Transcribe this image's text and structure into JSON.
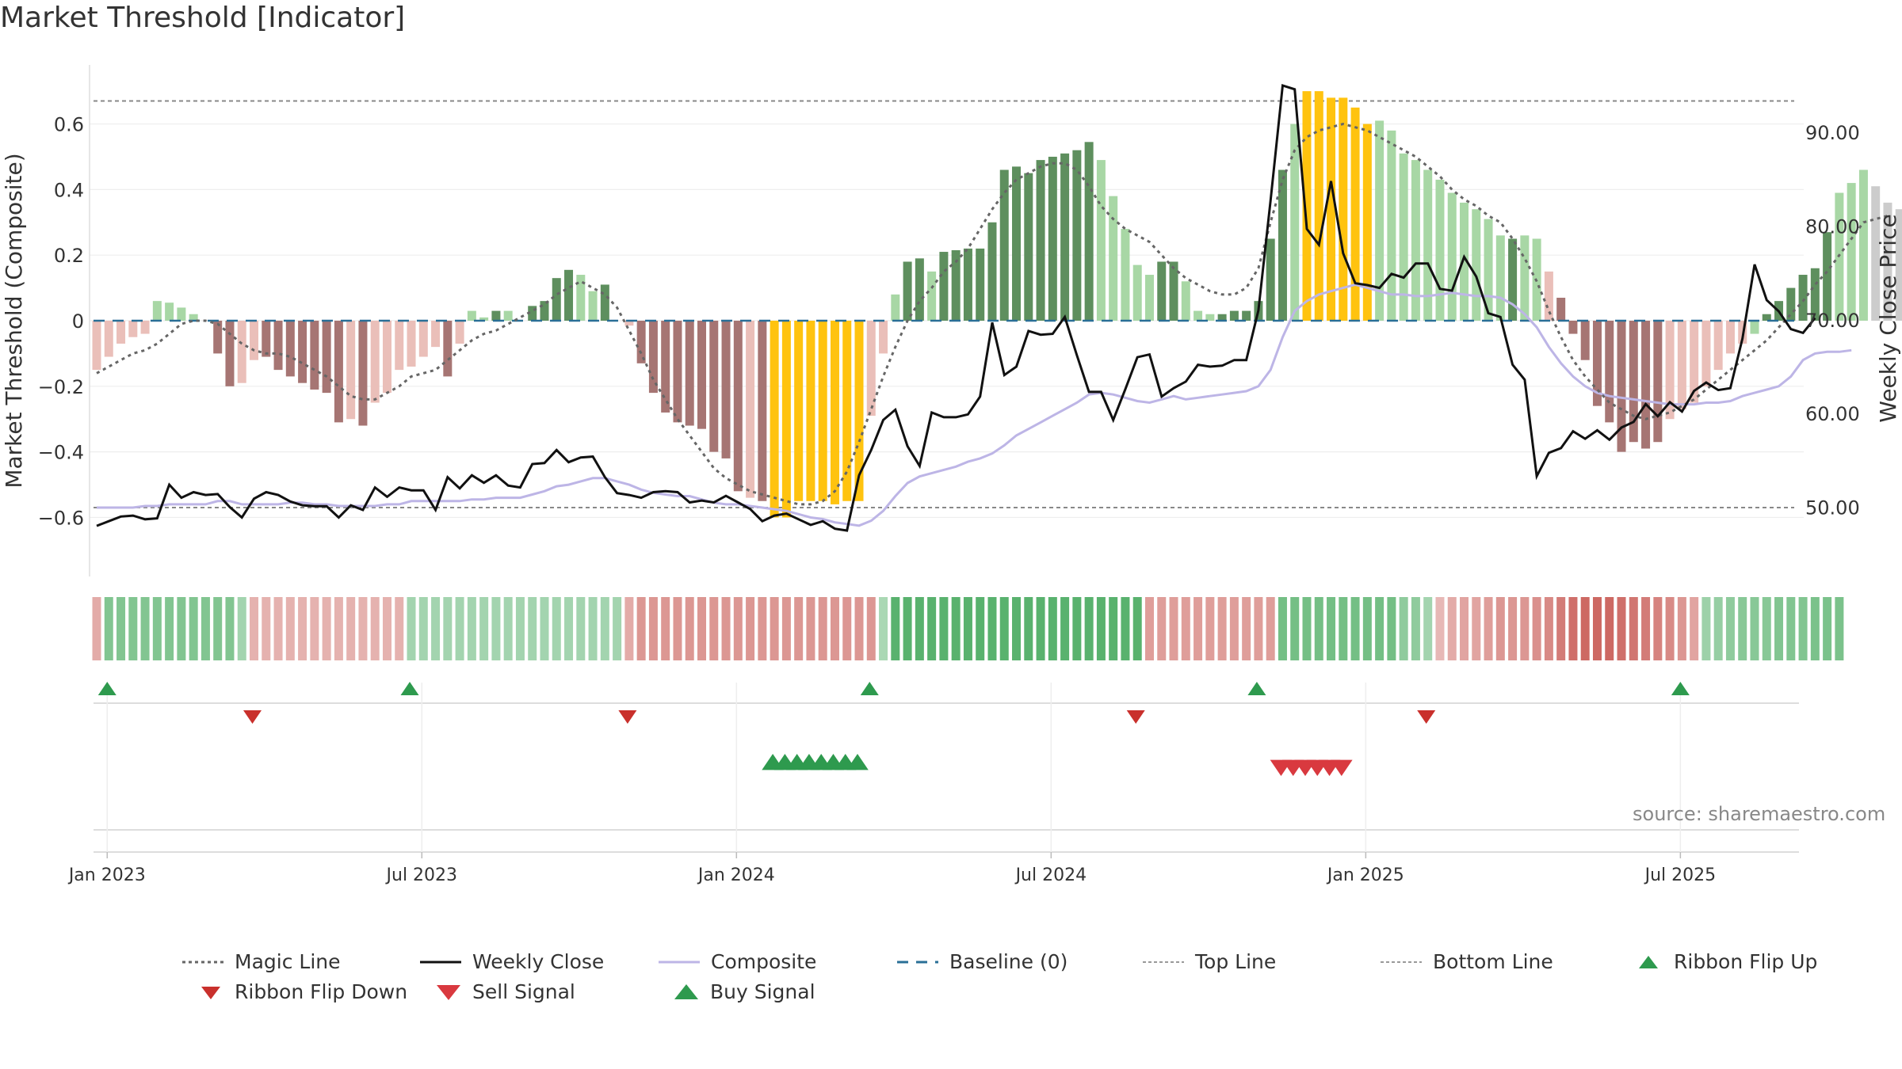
{
  "title": "Market Threshold [Indicator]",
  "source": "source: sharemaestro.com",
  "chart_data": {
    "type": "bar",
    "title": "Market Threshold [Indicator]",
    "ylabel_left": "Market Threshold (Composite)",
    "ylabel_right": "Weekly Close Price",
    "ylim_left": [
      -0.78,
      0.78
    ],
    "ylim_right": [
      42.6,
      97.2
    ],
    "yticks_left": [
      -0.6,
      -0.4,
      -0.2,
      0,
      0.2,
      0.4,
      0.6
    ],
    "yticks_left_labels": [
      "−0.6",
      "−0.4",
      "−0.2",
      "0",
      "0.2",
      "0.4",
      "0.6"
    ],
    "yticks_right": [
      50,
      60,
      70,
      80,
      90
    ],
    "yticks_right_labels": [
      "50.00",
      "60.00",
      "70.00",
      "80.00",
      "90.00"
    ],
    "top_line": 0.67,
    "bottom_line": -0.57,
    "xtick_labels": [
      "Jan 2023",
      "Jul 2023",
      "Jan 2024",
      "Jul 2024",
      "Jan 2025",
      "Jul 2025"
    ],
    "xtick_weeks": [
      1,
      27,
      53,
      79,
      105,
      131
    ],
    "grid": true,
    "legend_placement": "bottom",
    "colors": {
      "pos_dark": "#5e8f5e",
      "pos_light": "#a8d7a5",
      "neg_dark": "#a67573",
      "neg_light": "#eabfb9",
      "extreme": "#ffc30f",
      "weekly_close": "#111111",
      "composite": "#bdb5e6",
      "magic": "#666666",
      "baseline": "#2a6f97",
      "buy": "#2e9a4e",
      "sell": "#d9393f",
      "ribbon_up": "#2e9a4e",
      "ribbon_down": "#c9302c"
    },
    "bars": [
      -0.15,
      -0.11,
      -0.07,
      -0.05,
      -0.04,
      0.06,
      0.055,
      0.04,
      0.02,
      0,
      -0.1,
      -0.2,
      -0.19,
      -0.12,
      -0.11,
      -0.15,
      -0.17,
      -0.19,
      -0.21,
      -0.22,
      -0.31,
      -0.3,
      -0.32,
      -0.25,
      -0.22,
      -0.15,
      -0.14,
      -0.11,
      -0.08,
      -0.17,
      -0.07,
      0.03,
      0.01,
      0.03,
      0.03,
      0,
      0.045,
      0.06,
      0.13,
      0.155,
      0.14,
      0.09,
      0.11,
      0,
      -0.015,
      -0.13,
      -0.22,
      -0.28,
      -0.31,
      -0.32,
      -0.33,
      -0.4,
      -0.42,
      -0.52,
      -0.54,
      -0.55,
      -0.6,
      -0.6,
      -0.55,
      -0.55,
      -0.55,
      -0.56,
      -0.55,
      -0.55,
      -0.29,
      -0.1,
      0.08,
      0.18,
      0.19,
      0.15,
      0.21,
      0.215,
      0.22,
      0.22,
      0.3,
      0.46,
      0.47,
      0.45,
      0.49,
      0.5,
      0.51,
      0.52,
      0.545,
      0.49,
      0.38,
      0.28,
      0.17,
      0.14,
      0.18,
      0.18,
      0.12,
      0.03,
      0.02,
      0.02,
      0.03,
      0.03,
      0.06,
      0.25,
      0.46,
      0.6,
      0.7,
      0.7,
      0.68,
      0.68,
      0.65,
      0.6,
      0.61,
      0.58,
      0.51,
      0.49,
      0.46,
      0.43,
      0.39,
      0.36,
      0.34,
      0.31,
      0.26,
      0.25,
      0.26,
      0.25,
      0.15,
      0.07,
      -0.04,
      -0.12,
      -0.26,
      -0.31,
      -0.4,
      -0.37,
      -0.39,
      -0.37,
      -0.3,
      -0.27,
      -0.25,
      -0.2,
      -0.15,
      -0.1,
      -0.07,
      -0.04,
      0.02,
      0.06,
      0.1,
      0.14,
      0.16,
      0.27,
      0.39,
      0.42,
      0.46,
      0.41,
      0.36,
      0.34
    ],
    "bar_colors": [
      "nl",
      "nl",
      "nl",
      "nl",
      "nl",
      "pl",
      "pl",
      "pl",
      "pl",
      "nl",
      "nd",
      "nd",
      "nl",
      "nl",
      "nd",
      "nd",
      "nd",
      "nd",
      "nd",
      "nd",
      "nd",
      "nl",
      "nd",
      "nl",
      "nl",
      "nl",
      "nl",
      "nl",
      "nl",
      "nd",
      "nl",
      "pl",
      "pl",
      "pd",
      "pl",
      "pl",
      "pd",
      "pd",
      "pd",
      "pd",
      "pl",
      "pl",
      "pd",
      "nl",
      "nl",
      "nd",
      "nd",
      "nd",
      "nd",
      "nd",
      "nd",
      "nd",
      "nd",
      "nd",
      "nl",
      "nd",
      "ex",
      "ex",
      "ex",
      "ex",
      "ex",
      "ex",
      "ex",
      "ex",
      "nl",
      "nl",
      "pl",
      "pd",
      "pd",
      "pl",
      "pd",
      "pd",
      "pd",
      "pd",
      "pd",
      "pd",
      "pd",
      "pd",
      "pd",
      "pd",
      "pd",
      "pd",
      "pd",
      "pl",
      "pl",
      "pl",
      "pl",
      "pl",
      "pd",
      "pd",
      "pl",
      "pl",
      "pl",
      "pd",
      "pd",
      "pd",
      "pd",
      "pd",
      "pd",
      "pl",
      "ex",
      "ex",
      "ex",
      "ex",
      "ex",
      "ex",
      "pl",
      "pl",
      "pl",
      "pl",
      "pl",
      "pl",
      "pl",
      "pl",
      "pl",
      "pl",
      "pl",
      "pd",
      "pl",
      "pl",
      "nl",
      "nd",
      "nd",
      "nd",
      "nd",
      "nd",
      "nd",
      "nd",
      "nd",
      "nd",
      "nl",
      "nl",
      "nl",
      "nl",
      "nl",
      "nl",
      "nl",
      "pl",
      "pd",
      "pd",
      "pd",
      "pd",
      "pd",
      "pd",
      "pl",
      "pl",
      "pl"
    ],
    "weekly_close": [
      48,
      48.5,
      49,
      49.1,
      48.7,
      48.8,
      52.4,
      51,
      51.6,
      51.3,
      51.4,
      50,
      48.9,
      50.9,
      51.6,
      51.3,
      50.6,
      50.2,
      50.1,
      50.1,
      48.9,
      50.2,
      49.7,
      52.1,
      51.1,
      52.1,
      51.8,
      51.8,
      49.7,
      53.2,
      52,
      53.4,
      52.6,
      53.4,
      52.3,
      52.1,
      54.6,
      54.7,
      56.1,
      54.8,
      55.3,
      55.4,
      53.2,
      51.5,
      51.3,
      51,
      51.6,
      51.7,
      51.6,
      50.5,
      50.7,
      50.5,
      51.2,
      50.5,
      49.8,
      48.5,
      49.1,
      49.3,
      48.7,
      48.1,
      48.5,
      47.7,
      47.5,
      53.4,
      56.1,
      59.3,
      60.4,
      56.5,
      54.4,
      60.1,
      59.6,
      59.6,
      59.9,
      61.8,
      69.7,
      64.1,
      65,
      68.8,
      68.4,
      68.5,
      70.3,
      66.2,
      62.3,
      62.3,
      59.3,
      62.6,
      66,
      66.3,
      61.8,
      62.7,
      63.4,
      65.2,
      65,
      65.1,
      65.7,
      65.7,
      71,
      82.7,
      95,
      94.6,
      79.7,
      78,
      84.8,
      77.1,
      73.9,
      73.7,
      73.4,
      74.9,
      74.5,
      76,
      76,
      73.3,
      73.1,
      76.7,
      74.6,
      70.7,
      70.3,
      65.2,
      63.6,
      53.3,
      55.8,
      56.3,
      58.1,
      57.3,
      58.2,
      57.2,
      58.5,
      59.1,
      61,
      59.7,
      61.2,
      60.2,
      62.4,
      63.3,
      62.5,
      62.7,
      68,
      75.9,
      72.1,
      70.9,
      69,
      68.6,
      70.2
    ],
    "composite": [
      -0.57,
      -0.57,
      -0.57,
      -0.57,
      -0.565,
      -0.565,
      -0.56,
      -0.56,
      -0.56,
      -0.56,
      -0.55,
      -0.55,
      -0.56,
      -0.56,
      -0.56,
      -0.56,
      -0.555,
      -0.555,
      -0.56,
      -0.56,
      -0.565,
      -0.565,
      -0.565,
      -0.565,
      -0.56,
      -0.56,
      -0.55,
      -0.55,
      -0.55,
      -0.55,
      -0.55,
      -0.545,
      -0.545,
      -0.54,
      -0.54,
      -0.54,
      -0.53,
      -0.52,
      -0.505,
      -0.5,
      -0.49,
      -0.48,
      -0.48,
      -0.49,
      -0.5,
      -0.515,
      -0.525,
      -0.53,
      -0.535,
      -0.535,
      -0.545,
      -0.555,
      -0.56,
      -0.56,
      -0.565,
      -0.57,
      -0.575,
      -0.58,
      -0.59,
      -0.6,
      -0.605,
      -0.615,
      -0.62,
      -0.625,
      -0.61,
      -0.58,
      -0.535,
      -0.495,
      -0.475,
      -0.465,
      -0.455,
      -0.445,
      -0.43,
      -0.42,
      -0.405,
      -0.38,
      -0.35,
      -0.33,
      -0.31,
      -0.29,
      -0.27,
      -0.25,
      -0.225,
      -0.22,
      -0.225,
      -0.235,
      -0.245,
      -0.25,
      -0.24,
      -0.23,
      -0.24,
      -0.235,
      -0.23,
      -0.225,
      -0.22,
      -0.215,
      -0.2,
      -0.15,
      -0.05,
      0.03,
      0.06,
      0.08,
      0.09,
      0.1,
      0.11,
      0.1,
      0.09,
      0.08,
      0.08,
      0.075,
      0.075,
      0.08,
      0.085,
      0.08,
      0.075,
      0.075,
      0.07,
      0.05,
      0.02,
      -0.02,
      -0.08,
      -0.13,
      -0.17,
      -0.2,
      -0.22,
      -0.23,
      -0.235,
      -0.24,
      -0.245,
      -0.25,
      -0.255,
      -0.255,
      -0.255,
      -0.25,
      -0.25,
      -0.245,
      -0.23,
      -0.22,
      -0.21,
      -0.2,
      -0.17,
      -0.12,
      -0.1,
      -0.095,
      -0.095,
      -0.09
    ],
    "magic_line": [
      -0.16,
      -0.14,
      -0.12,
      -0.1,
      -0.09,
      -0.07,
      -0.04,
      -0.01,
      0,
      0,
      -0.01,
      -0.04,
      -0.07,
      -0.09,
      -0.1,
      -0.1,
      -0.11,
      -0.13,
      -0.15,
      -0.17,
      -0.2,
      -0.23,
      -0.24,
      -0.24,
      -0.22,
      -0.2,
      -0.17,
      -0.16,
      -0.15,
      -0.12,
      -0.09,
      -0.06,
      -0.04,
      -0.03,
      -0.01,
      0.01,
      0.03,
      0.05,
      0.08,
      0.1,
      0.12,
      0.1,
      0.08,
      0.04,
      -0.03,
      -0.1,
      -0.18,
      -0.24,
      -0.3,
      -0.35,
      -0.4,
      -0.45,
      -0.48,
      -0.5,
      -0.52,
      -0.53,
      -0.54,
      -0.55,
      -0.56,
      -0.56,
      -0.55,
      -0.52,
      -0.46,
      -0.37,
      -0.27,
      -0.17,
      -0.08,
      0,
      0.06,
      0.1,
      0.15,
      0.18,
      0.22,
      0.28,
      0.34,
      0.39,
      0.43,
      0.45,
      0.47,
      0.48,
      0.48,
      0.46,
      0.41,
      0.35,
      0.31,
      0.28,
      0.26,
      0.24,
      0.2,
      0.16,
      0.13,
      0.11,
      0.09,
      0.08,
      0.08,
      0.1,
      0.16,
      0.3,
      0.43,
      0.52,
      0.56,
      0.58,
      0.59,
      0.6,
      0.59,
      0.58,
      0.56,
      0.54,
      0.52,
      0.5,
      0.47,
      0.44,
      0.4,
      0.37,
      0.35,
      0.32,
      0.3,
      0.25,
      0.19,
      0.12,
      0.03,
      -0.05,
      -0.12,
      -0.17,
      -0.21,
      -0.25,
      -0.27,
      -0.29,
      -0.3,
      -0.29,
      -0.28,
      -0.26,
      -0.24,
      -0.21,
      -0.18,
      -0.15,
      -0.12,
      -0.09,
      -0.06,
      -0.02,
      0.02,
      0.06,
      0.11,
      0.15,
      0.2,
      0.25,
      0.3,
      0.31,
      0.32
    ],
    "ribbon": [
      -0.3,
      0.6,
      0.6,
      0.6,
      0.6,
      0.6,
      0.6,
      0.6,
      0.6,
      0.6,
      0.6,
      0.6,
      0.35,
      -0.25,
      -0.25,
      -0.25,
      -0.25,
      -0.25,
      -0.25,
      -0.25,
      -0.25,
      -0.25,
      -0.25,
      -0.25,
      -0.25,
      -0.25,
      0.35,
      0.35,
      0.35,
      0.35,
      0.35,
      0.35,
      0.35,
      0.35,
      0.35,
      0.35,
      0.35,
      0.35,
      0.35,
      0.35,
      0.35,
      0.35,
      0.35,
      0.35,
      -0.3,
      -0.45,
      -0.45,
      -0.45,
      -0.45,
      -0.45,
      -0.45,
      -0.45,
      -0.45,
      -0.45,
      -0.45,
      -0.45,
      -0.45,
      -0.45,
      -0.45,
      -0.45,
      -0.45,
      -0.45,
      -0.45,
      -0.45,
      -0.45,
      0.3,
      0.9,
      0.9,
      0.9,
      0.9,
      0.9,
      0.9,
      0.9,
      0.9,
      0.9,
      0.9,
      0.9,
      0.9,
      0.9,
      0.9,
      0.9,
      0.9,
      0.9,
      0.9,
      0.9,
      0.9,
      0.9,
      -0.4,
      -0.4,
      -0.4,
      -0.4,
      -0.4,
      -0.4,
      -0.4,
      -0.4,
      -0.4,
      -0.4,
      -0.4,
      0.7,
      0.7,
      0.7,
      0.7,
      0.7,
      0.7,
      0.7,
      0.7,
      0.7,
      0.7,
      0.5,
      0.5,
      0.35,
      -0.2,
      -0.3,
      -0.35,
      -0.35,
      -0.4,
      -0.45,
      -0.45,
      -0.45,
      -0.5,
      -0.55,
      -0.65,
      -0.75,
      -0.8,
      -0.8,
      -0.8,
      -0.75,
      -0.7,
      -0.65,
      -0.6,
      -0.55,
      -0.45,
      -0.35,
      0.4,
      0.45,
      0.5,
      0.55,
      0.55,
      0.55,
      0.6,
      0.6,
      0.6,
      0.65,
      0.65,
      0.65
    ],
    "ribbon_flip_up_weeks": [
      1,
      26,
      64,
      96,
      131
    ],
    "ribbon_flip_down_weeks": [
      13,
      44,
      86,
      110
    ],
    "buy_signal_weeks": [
      56,
      57,
      58,
      59,
      60,
      61,
      62,
      63
    ],
    "sell_signal_weeks": [
      98,
      99,
      100,
      101,
      102,
      103
    ],
    "legend": [
      "Magic Line",
      "Weekly Close",
      "Composite",
      "Baseline (0)",
      "Top Line",
      "Bottom Line",
      "Ribbon Flip Up",
      "Ribbon Flip Down",
      "Sell Signal",
      "Buy Signal"
    ]
  }
}
